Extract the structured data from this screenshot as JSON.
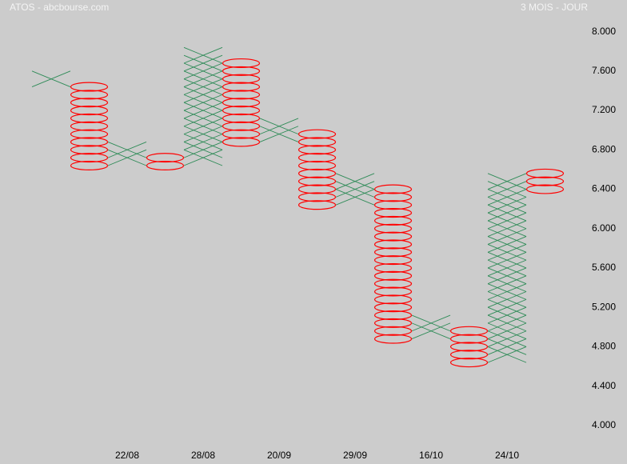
{
  "chart_data": {
    "type": "point-and-figure",
    "title": "ATOS - abcbourse.com",
    "subtitle": "3 MOIS - JOUR",
    "box_size": 0.08,
    "x_color": "#2e8b57",
    "o_color": "#ff0000",
    "categories": [
      null,
      null,
      "22/08",
      null,
      "28/08",
      null,
      "20/09",
      null,
      "29/09",
      null,
      "16/10",
      null,
      "24/10",
      null
    ],
    "columns": [
      {
        "kind": "X",
        "high": 7.52,
        "low": 7.52
      },
      {
        "kind": "O",
        "high": 7.44,
        "low": 6.64
      },
      {
        "kind": "X",
        "high": 6.8,
        "low": 6.72
      },
      {
        "kind": "O",
        "high": 6.72,
        "low": 6.64
      },
      {
        "kind": "X",
        "high": 7.76,
        "low": 6.72
      },
      {
        "kind": "O",
        "high": 7.68,
        "low": 6.88
      },
      {
        "kind": "X",
        "high": 7.04,
        "low": 6.96
      },
      {
        "kind": "O",
        "high": 6.96,
        "low": 6.24
      },
      {
        "kind": "X",
        "high": 6.48,
        "low": 6.32
      },
      {
        "kind": "O",
        "high": 6.4,
        "low": 4.88
      },
      {
        "kind": "X",
        "high": 5.04,
        "low": 4.96
      },
      {
        "kind": "O",
        "high": 4.96,
        "low": 4.64
      },
      {
        "kind": "X",
        "high": 6.48,
        "low": 4.72
      },
      {
        "kind": "O",
        "high": 6.56,
        "low": 6.4
      }
    ],
    "ylim": [
      3.8,
      8.2
    ],
    "yticks": [
      {
        "value": 4.0,
        "label": "4.000"
      },
      {
        "value": 4.4,
        "label": "4.400"
      },
      {
        "value": 4.8,
        "label": "4.800"
      },
      {
        "value": 5.2,
        "label": "5.200"
      },
      {
        "value": 5.6,
        "label": "5.600"
      },
      {
        "value": 6.0,
        "label": "6.000"
      },
      {
        "value": 6.4,
        "label": "6.400"
      },
      {
        "value": 6.8,
        "label": "6.800"
      },
      {
        "value": 7.2,
        "label": "7.200"
      },
      {
        "value": 7.6,
        "label": "7.600"
      },
      {
        "value": 8.0,
        "label": "8.000"
      }
    ],
    "grid": false
  }
}
